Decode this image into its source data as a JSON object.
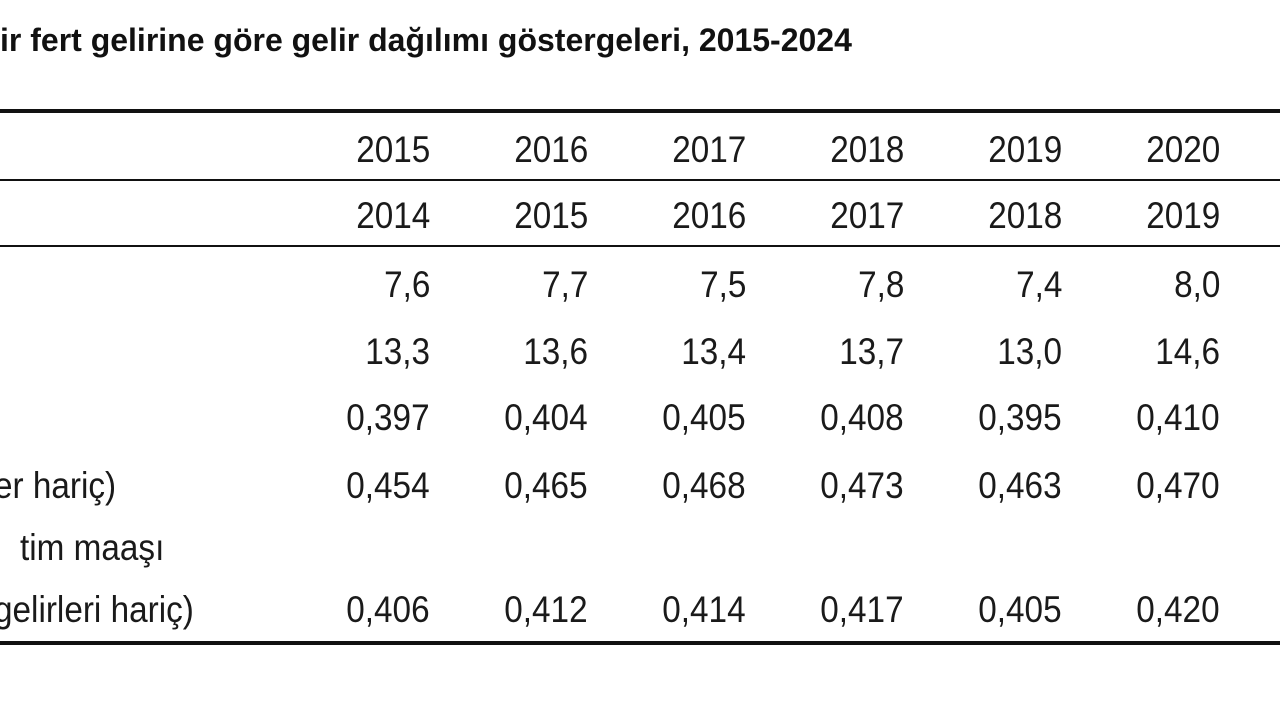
{
  "title": "ir fert gelirine göre gelir dağılımı göstergeleri, 2015-2024",
  "table": {
    "header_rows": [
      [
        "2015",
        "2016",
        "2017",
        "2018",
        "2019",
        "2020"
      ],
      [
        "2014",
        "2015",
        "2016",
        "2017",
        "2018",
        "2019"
      ]
    ],
    "rows": [
      {
        "values": [
          "7,6",
          "7,7",
          "7,5",
          "7,8",
          "7,4",
          "8,0"
        ]
      },
      {
        "values": [
          "13,3",
          "13,6",
          "13,4",
          "13,7",
          "13,0",
          "14,6"
        ]
      },
      {
        "values": [
          "0,397",
          "0,404",
          "0,405",
          "0,408",
          "0,395",
          "0,410"
        ]
      },
      {
        "label_lines": [
          "er hariç)"
        ],
        "values": [
          "0,454",
          "0,465",
          "0,468",
          "0,473",
          "0,463",
          "0,470"
        ]
      },
      {
        "label_lines": [
          "tim maaşı",
          "gelirleri hariç)"
        ],
        "values": [
          "0,406",
          "0,412",
          "0,414",
          "0,417",
          "0,405",
          "0,420"
        ]
      }
    ]
  }
}
